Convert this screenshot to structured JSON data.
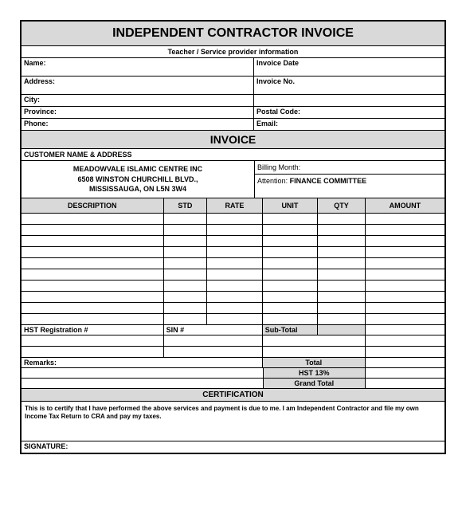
{
  "title": "INDEPENDENT CONTRACTOR INVOICE",
  "provider_label": "Teacher / Service provider information",
  "fields": {
    "name": "Name:",
    "invoice_date": "Invoice Date",
    "address": "Address:",
    "invoice_no": "Invoice No.",
    "city": "City:",
    "province": "Province:",
    "postal": "Postal Code:",
    "phone": "Phone:",
    "email": "Email:"
  },
  "invoice_heading": "INVOICE",
  "customer_heading": "CUSTOMER NAME & ADDRESS",
  "customer": {
    "name": "MEADOWVALE ISLAMIC CENTRE INC",
    "line1": "6508 WINSTON CHURCHILL BLVD.,",
    "line2": "MISSISSAUGA, ON L5N 3W4"
  },
  "billing_month_label": "Billing Month:",
  "attention_label": "Attention:",
  "attention_value": "FINANCE COMMITTEE",
  "columns": {
    "description": "DESCRIPTION",
    "std": "STD",
    "rate": "RATE",
    "unit": "UNIT",
    "qty": "QTY",
    "amount": "AMOUNT"
  },
  "grid_rows": 10,
  "reg": {
    "hst": "HST Registration #",
    "sin": "SIN #",
    "subtotal": "Sub-Total"
  },
  "remarks_label": "Remarks:",
  "totals": {
    "total": "Total",
    "hst": "HST 13%",
    "grand": "Grand Total"
  },
  "cert_heading": "CERTIFICATION",
  "cert_text": "This is to certify that I have performed the above services and payment is due to me. I am Independent Contractor and file my own Income Tax Return to CRA and pay my taxes.",
  "signature_label": "SIGNATURE:",
  "colors": {
    "header_bg": "#d9d9d9",
    "border": "#000000"
  }
}
